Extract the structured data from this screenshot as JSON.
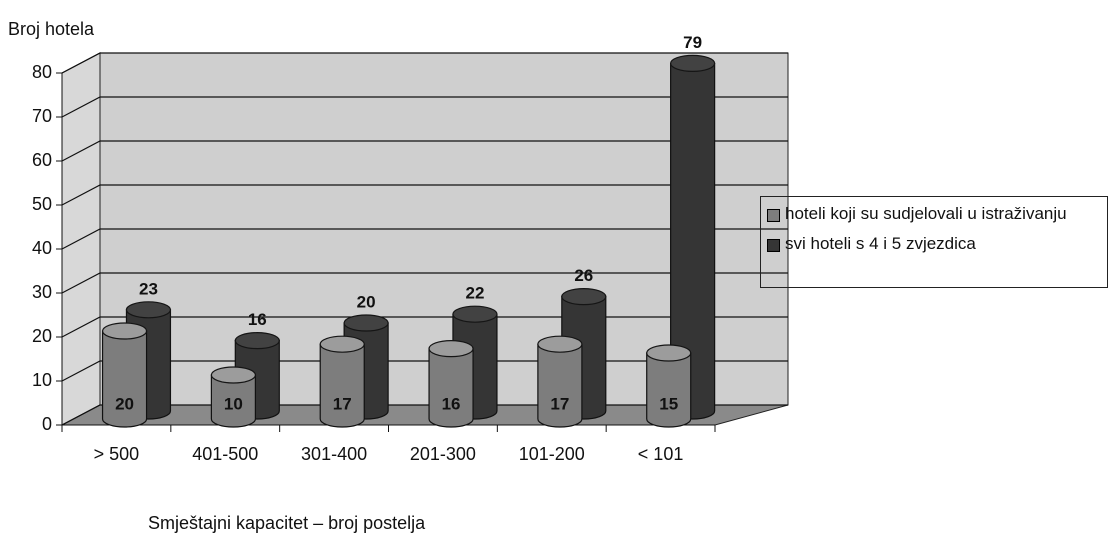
{
  "chart_data": {
    "type": "bar3d",
    "y_axis_title": "Broj hotela",
    "x_axis_title": "Smještajni kapacitet – broj postelja",
    "categories": [
      "> 500",
      "401-500",
      "301-400",
      "201-300",
      "101-200",
      "< 101"
    ],
    "series": [
      {
        "name": "hoteli koji su sudjelovali u istraživanju",
        "color": "#7d7d7d",
        "values": [
          20,
          10,
          17,
          16,
          17,
          15
        ]
      },
      {
        "name": "svi hoteli s 4 i 5 zvjezdica",
        "color": "#353535",
        "values": [
          23,
          16,
          20,
          22,
          26,
          79
        ]
      }
    ],
    "ylim": [
      0,
      80
    ],
    "yticks": [
      0,
      10,
      20,
      30,
      40,
      50,
      60,
      70,
      80
    ],
    "grid": true,
    "legend": "right"
  }
}
